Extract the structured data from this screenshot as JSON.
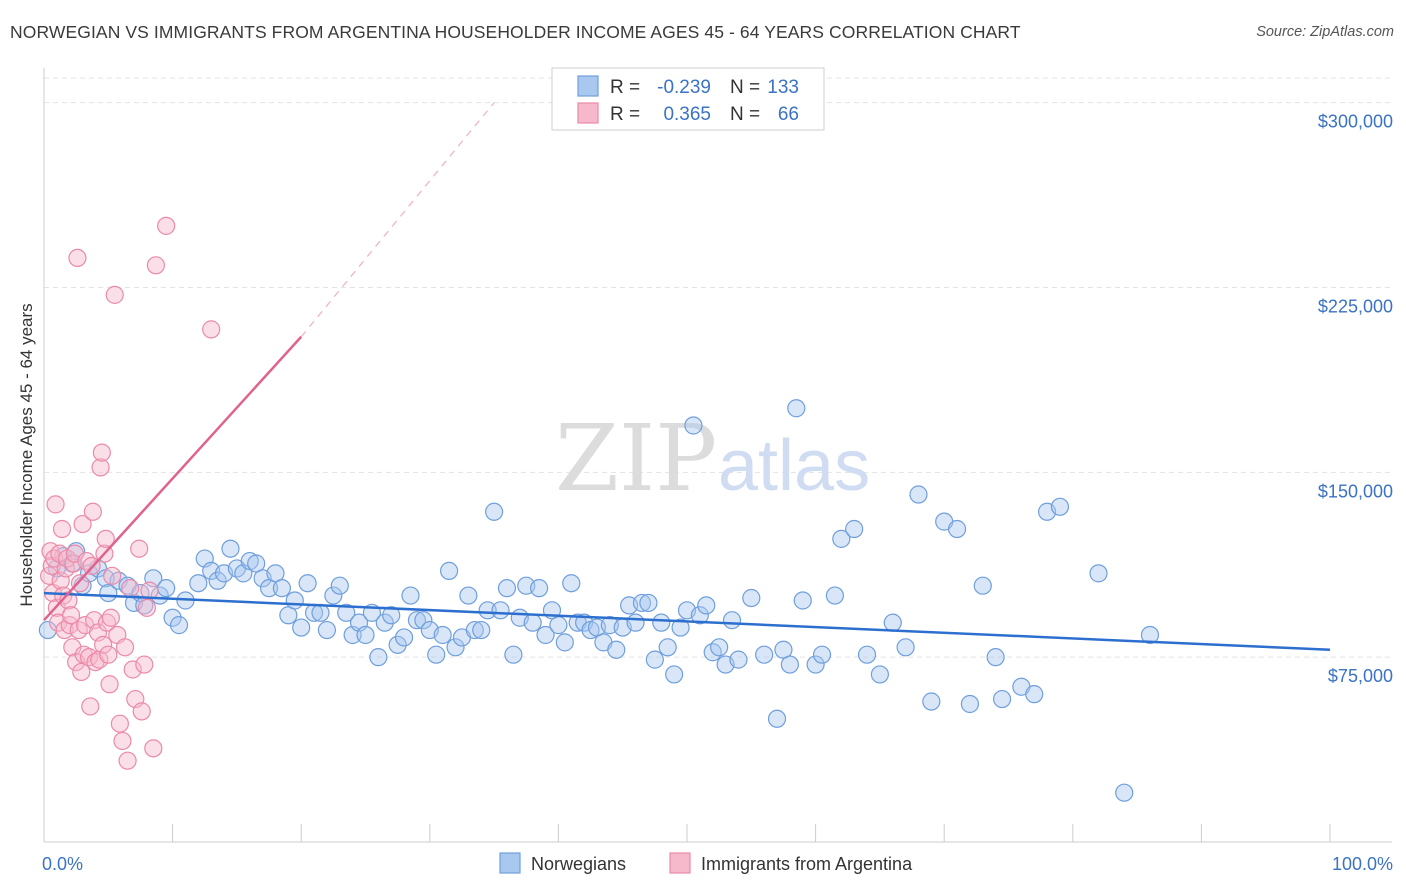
{
  "header": {
    "title": "NORWEGIAN VS IMMIGRANTS FROM ARGENTINA HOUSEHOLDER INCOME AGES 45 - 64 YEARS CORRELATION CHART",
    "source": "Source: ZipAtlas.com"
  },
  "watermark": {
    "zip": "ZIP",
    "atlas": "atlas"
  },
  "legend": {
    "r_label": "R =",
    "n_label": "N =",
    "rows": [
      {
        "r": "-0.239",
        "n": "133"
      },
      {
        "r": "0.365",
        "n": "66"
      }
    ]
  },
  "colors": {
    "norwegians_fill": "#a9c8f0",
    "norwegians_stroke": "#6f9fdc",
    "norwegians_line": "#2d6fcf",
    "argentina_fill": "#f6b9cb",
    "argentina_stroke": "#eb8aa8",
    "argentina_line": "#e0628e",
    "axis_label": "#3b73c4"
  },
  "chart_data": {
    "type": "scatter",
    "title": "NORWEGIAN VS IMMIGRANTS FROM ARGENTINA HOUSEHOLDER INCOME AGES 45 - 64 YEARS CORRELATION CHART",
    "xlabel": "",
    "ylabel": "Householder Income Ages 45 - 64 years",
    "xlim": [
      0,
      100
    ],
    "ylim": [
      0,
      310000
    ],
    "x_tick_labels": [
      "0.0%",
      "100.0%"
    ],
    "y_ticks": [
      75000,
      150000,
      225000,
      300000
    ],
    "y_tick_labels": [
      "$75,000",
      "$150,000",
      "$225,000",
      "$300,000"
    ],
    "grid": true,
    "legend_position": "top-center",
    "series": [
      {
        "name": "Norwegians",
        "r": -0.239,
        "n": 133,
        "trend": {
          "x": [
            0,
            100
          ],
          "y": [
            101000,
            78000
          ]
        },
        "points": [
          [
            0.3,
            86000
          ],
          [
            1.0,
            111000
          ],
          [
            1.5,
            116000
          ],
          [
            2.2,
            113000
          ],
          [
            2.5,
            118000
          ],
          [
            3.0,
            104000
          ],
          [
            3.5,
            109000
          ],
          [
            4.2,
            111000
          ],
          [
            4.8,
            107000
          ],
          [
            5.0,
            101000
          ],
          [
            5.8,
            106000
          ],
          [
            6.5,
            104000
          ],
          [
            7.0,
            97000
          ],
          [
            7.5,
            101000
          ],
          [
            7.8,
            96000
          ],
          [
            8.5,
            107000
          ],
          [
            9.0,
            100000
          ],
          [
            9.5,
            103000
          ],
          [
            10.0,
            91000
          ],
          [
            10.5,
            88000
          ],
          [
            11.0,
            98000
          ],
          [
            12.0,
            105000
          ],
          [
            12.5,
            115000
          ],
          [
            13.0,
            110000
          ],
          [
            13.5,
            106000
          ],
          [
            14.0,
            109000
          ],
          [
            14.5,
            119000
          ],
          [
            15.0,
            111000
          ],
          [
            15.5,
            109000
          ],
          [
            16.0,
            114000
          ],
          [
            16.5,
            113000
          ],
          [
            17.0,
            107000
          ],
          [
            17.5,
            103000
          ],
          [
            18.0,
            109000
          ],
          [
            18.5,
            103000
          ],
          [
            19.0,
            92000
          ],
          [
            19.5,
            98000
          ],
          [
            20.0,
            87000
          ],
          [
            20.5,
            105000
          ],
          [
            21.0,
            93000
          ],
          [
            21.5,
            93000
          ],
          [
            22.0,
            86000
          ],
          [
            22.5,
            100000
          ],
          [
            23.0,
            104000
          ],
          [
            23.5,
            93000
          ],
          [
            24.0,
            84000
          ],
          [
            24.5,
            89000
          ],
          [
            25.0,
            84000
          ],
          [
            25.5,
            93000
          ],
          [
            26.0,
            75000
          ],
          [
            26.5,
            89000
          ],
          [
            27.0,
            92000
          ],
          [
            27.5,
            80000
          ],
          [
            28.0,
            83000
          ],
          [
            28.5,
            100000
          ],
          [
            29.0,
            90000
          ],
          [
            29.5,
            90000
          ],
          [
            30.0,
            86000
          ],
          [
            30.5,
            76000
          ],
          [
            31.0,
            84000
          ],
          [
            31.5,
            110000
          ],
          [
            32.0,
            79000
          ],
          [
            32.5,
            83000
          ],
          [
            33.0,
            100000
          ],
          [
            33.5,
            86000
          ],
          [
            34.0,
            86000
          ],
          [
            34.5,
            94000
          ],
          [
            35.0,
            134000
          ],
          [
            35.5,
            94000
          ],
          [
            36.0,
            103000
          ],
          [
            36.5,
            76000
          ],
          [
            37.0,
            91000
          ],
          [
            37.5,
            104000
          ],
          [
            38.0,
            89000
          ],
          [
            38.5,
            103000
          ],
          [
            39.0,
            84000
          ],
          [
            39.5,
            94000
          ],
          [
            40.0,
            88000
          ],
          [
            40.5,
            81000
          ],
          [
            41.0,
            105000
          ],
          [
            41.5,
            89000
          ],
          [
            42.0,
            89000
          ],
          [
            42.5,
            86000
          ],
          [
            43.0,
            87000
          ],
          [
            43.5,
            81000
          ],
          [
            44.0,
            88000
          ],
          [
            44.5,
            78000
          ],
          [
            45.0,
            87000
          ],
          [
            45.5,
            96000
          ],
          [
            46.0,
            89000
          ],
          [
            46.5,
            97000
          ],
          [
            47.0,
            97000
          ],
          [
            47.5,
            74000
          ],
          [
            48.0,
            89000
          ],
          [
            48.5,
            79000
          ],
          [
            49.0,
            68000
          ],
          [
            49.5,
            87000
          ],
          [
            50.0,
            94000
          ],
          [
            50.5,
            169000
          ],
          [
            51.0,
            92000
          ],
          [
            51.5,
            96000
          ],
          [
            52.0,
            77000
          ],
          [
            52.5,
            79000
          ],
          [
            53.0,
            72000
          ],
          [
            53.5,
            90000
          ],
          [
            54.0,
            74000
          ],
          [
            55.0,
            99000
          ],
          [
            56.0,
            76000
          ],
          [
            57.0,
            50000
          ],
          [
            57.5,
            78000
          ],
          [
            58.0,
            72000
          ],
          [
            58.5,
            176000
          ],
          [
            59.0,
            98000
          ],
          [
            60.0,
            72000
          ],
          [
            60.5,
            76000
          ],
          [
            61.5,
            100000
          ],
          [
            62.0,
            123000
          ],
          [
            63.0,
            127000
          ],
          [
            64.0,
            76000
          ],
          [
            65.0,
            68000
          ],
          [
            66.0,
            89000
          ],
          [
            67.0,
            79000
          ],
          [
            68.0,
            141000
          ],
          [
            69.0,
            57000
          ],
          [
            70.0,
            130000
          ],
          [
            71.0,
            127000
          ],
          [
            72.0,
            56000
          ],
          [
            73.0,
            104000
          ],
          [
            74.0,
            75000
          ],
          [
            74.5,
            58000
          ],
          [
            76.0,
            63000
          ],
          [
            77.0,
            60000
          ],
          [
            78.0,
            134000
          ],
          [
            79.0,
            136000
          ],
          [
            82.0,
            109000
          ],
          [
            84.0,
            20000
          ],
          [
            86.0,
            84000
          ]
        ]
      },
      {
        "name": "Immigrants from Argentina",
        "r": 0.365,
        "n": 66,
        "trend": {
          "x": [
            0,
            20
          ],
          "y": [
            90000,
            205000
          ],
          "dashed_extension": {
            "x": [
              20,
              35
            ],
            "y": [
              205000,
              300000
            ]
          }
        },
        "points": [
          [
            0.4,
            108000
          ],
          [
            0.5,
            118000
          ],
          [
            0.6,
            112000
          ],
          [
            0.7,
            101000
          ],
          [
            0.8,
            115000
          ],
          [
            0.9,
            137000
          ],
          [
            1.0,
            95000
          ],
          [
            1.1,
            89000
          ],
          [
            1.2,
            117000
          ],
          [
            1.3,
            106000
          ],
          [
            1.4,
            127000
          ],
          [
            1.5,
            100000
          ],
          [
            1.6,
            86000
          ],
          [
            1.7,
            111000
          ],
          [
            1.8,
            115000
          ],
          [
            1.9,
            98000
          ],
          [
            2.0,
            88000
          ],
          [
            2.1,
            92000
          ],
          [
            2.2,
            79000
          ],
          [
            2.3,
            113000
          ],
          [
            2.4,
            117000
          ],
          [
            2.5,
            73000
          ],
          [
            2.6,
            237000
          ],
          [
            2.7,
            86000
          ],
          [
            2.8,
            105000
          ],
          [
            2.9,
            69000
          ],
          [
            3.0,
            129000
          ],
          [
            3.1,
            76000
          ],
          [
            3.2,
            88000
          ],
          [
            3.3,
            114000
          ],
          [
            3.5,
            75000
          ],
          [
            3.6,
            55000
          ],
          [
            3.7,
            112000
          ],
          [
            3.8,
            134000
          ],
          [
            3.9,
            90000
          ],
          [
            4.0,
            73000
          ],
          [
            4.2,
            85000
          ],
          [
            4.3,
            74000
          ],
          [
            4.4,
            152000
          ],
          [
            4.5,
            158000
          ],
          [
            4.6,
            80000
          ],
          [
            4.7,
            117000
          ],
          [
            4.8,
            123000
          ],
          [
            4.9,
            89000
          ],
          [
            5.0,
            76000
          ],
          [
            5.1,
            64000
          ],
          [
            5.2,
            91000
          ],
          [
            5.3,
            108000
          ],
          [
            5.5,
            222000
          ],
          [
            5.7,
            84000
          ],
          [
            5.9,
            48000
          ],
          [
            6.1,
            41000
          ],
          [
            6.3,
            79000
          ],
          [
            6.5,
            33000
          ],
          [
            6.7,
            103000
          ],
          [
            6.9,
            70000
          ],
          [
            7.1,
            58000
          ],
          [
            7.4,
            119000
          ],
          [
            7.6,
            53000
          ],
          [
            7.8,
            72000
          ],
          [
            8.0,
            95000
          ],
          [
            8.2,
            102000
          ],
          [
            8.5,
            38000
          ],
          [
            8.7,
            234000
          ],
          [
            9.5,
            250000
          ],
          [
            13.0,
            208000
          ]
        ]
      }
    ]
  },
  "bottom_legend": {
    "items": [
      {
        "label": "Norwegians"
      },
      {
        "label": "Immigrants from Argentina"
      }
    ]
  }
}
